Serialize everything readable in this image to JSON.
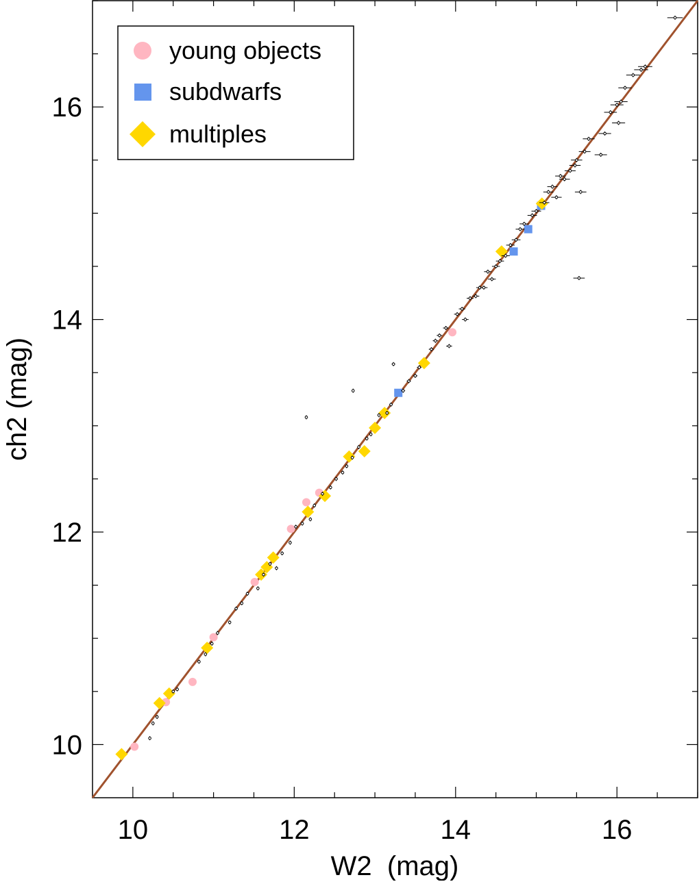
{
  "chart_data": {
    "type": "scatter",
    "xlabel": "W2  (mag)",
    "ylabel": "ch2 (mag)",
    "xlim": [
      9.5,
      17.0
    ],
    "ylim": [
      9.5,
      17.0
    ],
    "xticks": [
      10,
      12,
      14,
      16
    ],
    "yticks": [
      10,
      12,
      14,
      16
    ],
    "grid": false,
    "legend_position": "top-left",
    "reference_line": {
      "description": "y = x",
      "color": "#a0522d"
    },
    "legend": [
      {
        "label": "young objects",
        "marker": "circle",
        "color": "#ffb6c1"
      },
      {
        "label": "subdwarfs",
        "marker": "square",
        "color": "#6495ed"
      },
      {
        "label": "multiples",
        "marker": "diamond",
        "color": "#ffd700"
      }
    ],
    "series": [
      {
        "name": "young objects",
        "color": "#ffb6c1",
        "marker": "circle",
        "points": [
          [
            10.02,
            9.98
          ],
          [
            10.41,
            10.4
          ],
          [
            10.74,
            10.59
          ],
          [
            11.0,
            11.01
          ],
          [
            11.51,
            11.53
          ],
          [
            11.96,
            12.03
          ],
          [
            12.15,
            12.28
          ],
          [
            12.31,
            12.37
          ],
          [
            13.96,
            13.88
          ]
        ]
      },
      {
        "name": "subdwarfs",
        "color": "#6495ed",
        "marker": "square",
        "points": [
          [
            13.29,
            13.31
          ],
          [
            14.72,
            14.64
          ],
          [
            14.9,
            14.85
          ],
          [
            15.06,
            15.07
          ]
        ]
      },
      {
        "name": "multiples",
        "color": "#ffd700",
        "marker": "diamond",
        "points": [
          [
            9.86,
            9.91
          ],
          [
            10.33,
            10.39
          ],
          [
            10.45,
            10.48
          ],
          [
            10.92,
            10.91
          ],
          [
            11.59,
            11.6
          ],
          [
            11.66,
            11.67
          ],
          [
            11.74,
            11.76
          ],
          [
            12.17,
            12.19
          ],
          [
            12.38,
            12.34
          ],
          [
            12.68,
            12.71
          ],
          [
            12.87,
            12.76
          ],
          [
            13.0,
            12.98
          ],
          [
            13.12,
            13.12
          ],
          [
            13.61,
            13.59
          ],
          [
            14.57,
            14.64
          ],
          [
            15.07,
            15.09
          ]
        ]
      },
      {
        "color": "#000000",
        "marker": "errorbar",
        "points": [
          [
            10.21,
            10.06
          ],
          [
            10.25,
            10.2
          ],
          [
            10.3,
            10.26
          ],
          [
            10.5,
            10.5
          ],
          [
            10.55,
            10.52
          ],
          [
            10.82,
            10.78
          ],
          [
            10.9,
            10.85
          ],
          [
            10.98,
            10.95
          ],
          [
            11.05,
            11.05
          ],
          [
            11.2,
            11.15
          ],
          [
            11.28,
            11.28
          ],
          [
            11.35,
            11.33
          ],
          [
            11.42,
            11.42
          ],
          [
            11.55,
            11.47
          ],
          [
            11.62,
            11.6
          ],
          [
            11.7,
            11.7
          ],
          [
            11.78,
            11.66
          ],
          [
            11.85,
            11.8
          ],
          [
            11.95,
            11.9
          ],
          [
            12.02,
            12.05
          ],
          [
            12.1,
            12.08
          ],
          [
            12.2,
            12.12
          ],
          [
            12.25,
            12.25
          ],
          [
            12.35,
            12.36
          ],
          [
            12.45,
            12.42
          ],
          [
            12.52,
            12.5
          ],
          [
            12.6,
            12.56
          ],
          [
            12.65,
            12.62
          ],
          [
            12.72,
            12.7
          ],
          [
            12.8,
            12.8
          ],
          [
            12.9,
            12.88
          ],
          [
            12.95,
            12.92
          ],
          [
            13.05,
            13.1
          ],
          [
            13.15,
            13.12
          ],
          [
            13.2,
            13.2
          ],
          [
            13.35,
            13.33
          ],
          [
            13.42,
            13.42
          ],
          [
            13.5,
            13.47
          ],
          [
            13.55,
            13.55
          ],
          [
            13.7,
            13.72
          ],
          [
            13.75,
            13.8
          ],
          [
            13.8,
            13.85
          ],
          [
            13.88,
            13.92
          ],
          [
            13.92,
            13.75
          ],
          [
            14.02,
            14.05
          ],
          [
            14.08,
            14.1
          ],
          [
            14.12,
            14.0
          ],
          [
            14.18,
            14.2
          ],
          [
            14.25,
            14.22
          ],
          [
            14.3,
            14.3
          ],
          [
            14.35,
            14.3
          ],
          [
            14.4,
            14.45
          ],
          [
            14.45,
            14.38
          ],
          [
            14.5,
            14.5
          ],
          [
            14.55,
            14.55
          ],
          [
            14.62,
            14.6
          ],
          [
            14.68,
            14.7
          ],
          [
            14.75,
            14.75
          ],
          [
            14.8,
            14.85
          ],
          [
            14.85,
            14.9
          ],
          [
            14.95,
            14.98
          ],
          [
            15.0,
            15.02
          ],
          [
            15.1,
            15.1
          ],
          [
            15.15,
            15.2
          ],
          [
            15.2,
            15.25
          ],
          [
            15.25,
            15.15
          ],
          [
            15.3,
            15.35
          ],
          [
            15.35,
            15.32
          ],
          [
            15.42,
            15.4
          ],
          [
            15.48,
            15.45
          ],
          [
            15.5,
            15.5
          ],
          [
            15.55,
            15.2
          ],
          [
            15.6,
            15.58
          ],
          [
            15.65,
            15.7
          ],
          [
            15.8,
            15.55
          ],
          [
            15.85,
            15.75
          ],
          [
            15.92,
            15.95
          ],
          [
            16.0,
            16.02
          ],
          [
            16.02,
            15.85
          ],
          [
            16.05,
            16.05
          ],
          [
            16.1,
            16.18
          ],
          [
            16.2,
            16.3
          ],
          [
            16.3,
            16.35
          ],
          [
            16.35,
            16.38
          ],
          [
            12.15,
            13.08
          ],
          [
            12.73,
            13.33
          ],
          [
            13.23,
            13.58
          ],
          [
            15.53,
            14.39
          ],
          [
            16.72,
            16.84
          ]
        ]
      }
    ]
  }
}
